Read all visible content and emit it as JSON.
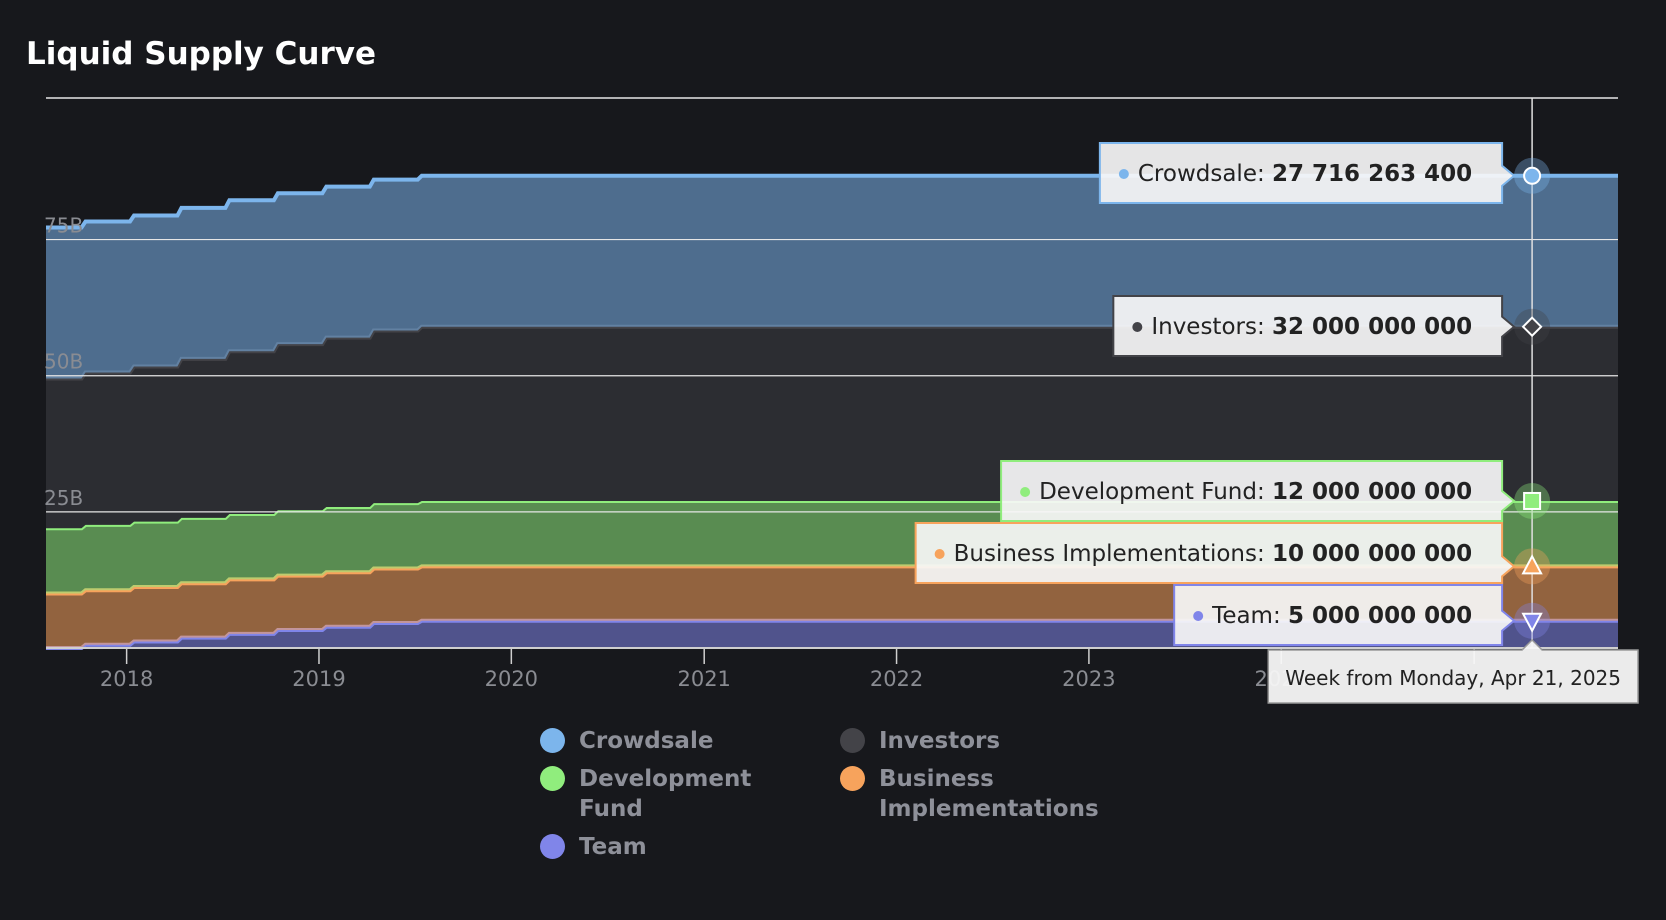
{
  "title": "Liquid Supply Curve",
  "colors": {
    "background": "#17181c",
    "crowdsale": "#7cb5ec",
    "investors": "#434348",
    "development_fund": "#90ed7d",
    "business": "#f7a35c",
    "team": "#8085e9"
  },
  "chart_data": {
    "type": "area",
    "stacking": "normal",
    "x_range": [
      "2017-08-01",
      "2025-10-01"
    ],
    "ylim": [
      0,
      101000000000
    ],
    "y_ticks": [
      {
        "value": 25000000000,
        "label": "25B"
      },
      {
        "value": 50000000000,
        "label": "50B"
      },
      {
        "value": 75000000000,
        "label": "75B"
      }
    ],
    "x_ticks": [
      {
        "date": "2018-01-01",
        "label": "2018"
      },
      {
        "date": "2019-01-01",
        "label": "2019"
      },
      {
        "date": "2020-01-01",
        "label": "2020"
      },
      {
        "date": "2021-01-01",
        "label": "2021"
      },
      {
        "date": "2022-01-01",
        "label": "2022"
      },
      {
        "date": "2023-01-01",
        "label": "2023"
      },
      {
        "date": "2024-01-01",
        "label": "2024"
      },
      {
        "date": "2025-01-01",
        "label": ""
      }
    ],
    "release_steps": [
      "2017-08-01",
      "2017-10-15",
      "2018-01-15",
      "2018-04-15",
      "2018-07-15",
      "2018-10-15",
      "2019-01-15",
      "2019-04-15",
      "2019-07-15"
    ],
    "series": [
      {
        "name": "Crowdsale",
        "key": "crowdsale",
        "values": [
          27716263400,
          27716263400,
          27716263400,
          27716263400,
          27716263400,
          27716263400,
          27716263400,
          27716263400,
          27716263400
        ]
      },
      {
        "name": "Investors",
        "key": "investors",
        "values": [
          27500000000,
          28000000000,
          28500000000,
          29200000000,
          29900000000,
          30500000000,
          31100000000,
          31700000000,
          32000000000
        ]
      },
      {
        "name": "Development Fund",
        "key": "development_fund",
        "values": [
          12000000000,
          12000000000,
          12000000000,
          12000000000,
          12000000000,
          12000000000,
          12000000000,
          12000000000,
          12000000000
        ]
      },
      {
        "name": "Business Implementations",
        "key": "business",
        "values": [
          10000000000,
          10000000000,
          10000000000,
          10000000000,
          10000000000,
          10000000000,
          10000000000,
          10000000000,
          10000000000
        ]
      },
      {
        "name": "Team",
        "key": "team",
        "values": [
          0,
          600000000,
          1200000000,
          1900000000,
          2600000000,
          3300000000,
          3900000000,
          4600000000,
          5000000000
        ]
      }
    ],
    "tooltip": {
      "date": "2025-04-21",
      "header": "Week from Monday, Apr 21, 2025",
      "entries": [
        {
          "key": "crowdsale",
          "label": "Crowdsale: ",
          "value": "27 716 263 400"
        },
        {
          "key": "investors",
          "label": "Investors: ",
          "value": "32 000 000 000"
        },
        {
          "key": "development_fund",
          "label": "Development Fund: ",
          "value": "12 000 000 000"
        },
        {
          "key": "business",
          "label": "Business Implementations: ",
          "value": "10 000 000 000"
        },
        {
          "key": "team",
          "label": "Team: ",
          "value": "5 000 000 000"
        }
      ]
    }
  },
  "legend": [
    {
      "key": "crowdsale",
      "label": "Crowdsale"
    },
    {
      "key": "investors",
      "label": "Investors"
    },
    {
      "key": "development_fund",
      "label": "Development Fund"
    },
    {
      "key": "business",
      "label": "Business Implementations"
    },
    {
      "key": "team",
      "label": "Team"
    }
  ]
}
